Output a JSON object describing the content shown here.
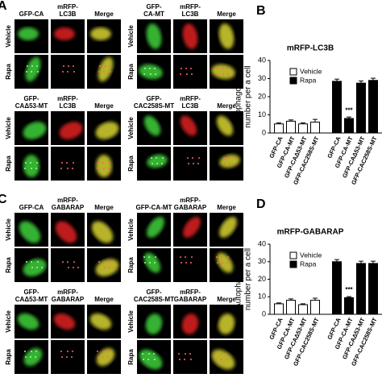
{
  "panels": [
    {
      "letter": "A",
      "groups": [
        {
          "headers": [
            [
              "GFP-CA"
            ],
            [
              "mRFP-",
              "LC3B"
            ],
            [
              "Merge"
            ]
          ],
          "rows": [
            "Vehicle",
            "Rapa"
          ]
        },
        {
          "headers": [
            [
              "GFP-",
              "CA-MT"
            ],
            [
              "mRFP-",
              "LC3B"
            ],
            [
              "Merge"
            ]
          ],
          "rows": [
            "Vehicle",
            "Rapa"
          ]
        },
        {
          "headers": [
            [
              "GFP-",
              "CAΔ53-MT"
            ],
            [
              "mRFP-",
              "LC3B"
            ],
            [
              "Merge"
            ]
          ],
          "rows": [
            "Vehicle",
            "Rapa"
          ]
        },
        {
          "headers": [
            [
              "GFP-",
              "CAC258S-MT"
            ],
            [
              "mRFP-",
              "LC3B"
            ],
            [
              "Merge"
            ]
          ],
          "rows": [
            "Vehicle",
            "Rapa"
          ]
        }
      ]
    },
    {
      "letter": "C",
      "groups": [
        {
          "headers": [
            [
              "GFP-CA"
            ],
            [
              "mRFP-",
              "GABARAP"
            ],
            [
              "Merge"
            ]
          ],
          "rows": [
            "Vehicle",
            "Rapa"
          ]
        },
        {
          "headers": [
            [
              "GFP-CA-MT"
            ],
            [
              "mRFP-",
              "GABARAP"
            ],
            [
              "Merge"
            ]
          ],
          "rows": [
            "Vehicle",
            "Rapa"
          ]
        },
        {
          "headers": [
            [
              "GFP-",
              "CAΔ53-MT"
            ],
            [
              "mRFP-",
              "GABARAP"
            ],
            [
              "Merge"
            ]
          ],
          "rows": [
            "Vehicle",
            "Rapa"
          ]
        },
        {
          "headers": [
            [
              "GFP-",
              "CAC258S-MT"
            ],
            [
              "mRFP-",
              "GABARAP"
            ],
            [
              "Merge"
            ]
          ],
          "rows": [
            "Vehicle",
            "Rapa"
          ]
        }
      ]
    }
  ],
  "chart_data": [
    {
      "type": "bar",
      "letter": "B",
      "title": "mRFP-LC3B",
      "y_label": [
        "Autophagosome",
        "number per a cell"
      ],
      "categories": [
        "GFP-CA",
        "GFP-CA-MT",
        "GFP-CAΔ53-MT",
        "GFP-CAC258S-MT",
        "GFP-CA",
        "GFP-CA-MT",
        "GFP-CAΔ53-MT",
        "GFP-CAC258S-MT"
      ],
      "series": [
        {
          "name": "Vehicle",
          "color": "#ffffff",
          "values": [
            5,
            6.5,
            5,
            6,
            null,
            null,
            null,
            null
          ],
          "errors": [
            0.6,
            0.7,
            0.6,
            1.5,
            null,
            null,
            null,
            null
          ]
        },
        {
          "name": "Rapa",
          "color": "#000000",
          "values": [
            null,
            null,
            null,
            null,
            28.5,
            8,
            27.5,
            29
          ],
          "errors": [
            null,
            null,
            null,
            null,
            1.2,
            0.8,
            1.2,
            1.2
          ],
          "significance": [
            null,
            null,
            null,
            null,
            null,
            "***",
            null,
            null
          ]
        }
      ],
      "ylim": [
        0,
        40
      ],
      "yticks": [
        0,
        10,
        20,
        30,
        40
      ]
    },
    {
      "type": "bar",
      "letter": "D",
      "title": "mRFP-GABARAP",
      "y_label": [
        "Autophagosome",
        "number per a cell"
      ],
      "categories": [
        "GFP-CA",
        "GFP-CA-MT",
        "GFP-CAΔ53-MT",
        "GFP-CAC258S-MT",
        "GFP-CA",
        "GFP-CA-MT",
        "GFP-CAΔ53-MT",
        "GFP-CAC258S-MT"
      ],
      "series": [
        {
          "name": "Vehicle",
          "color": "#ffffff",
          "values": [
            6,
            8,
            5.5,
            8,
            null,
            null,
            null,
            null
          ],
          "errors": [
            0.5,
            0.8,
            0.5,
            1.2,
            null,
            null,
            null,
            null
          ]
        },
        {
          "name": "Rapa",
          "color": "#000000",
          "values": [
            null,
            null,
            null,
            null,
            30,
            9.5,
            29,
            29
          ],
          "errors": [
            null,
            null,
            null,
            null,
            1.2,
            0.6,
            1.3,
            1.3
          ],
          "significance": [
            null,
            null,
            null,
            null,
            null,
            "***",
            null,
            null
          ]
        }
      ],
      "ylim": [
        0,
        40
      ],
      "yticks": [
        0,
        10,
        20,
        30,
        40
      ]
    }
  ]
}
